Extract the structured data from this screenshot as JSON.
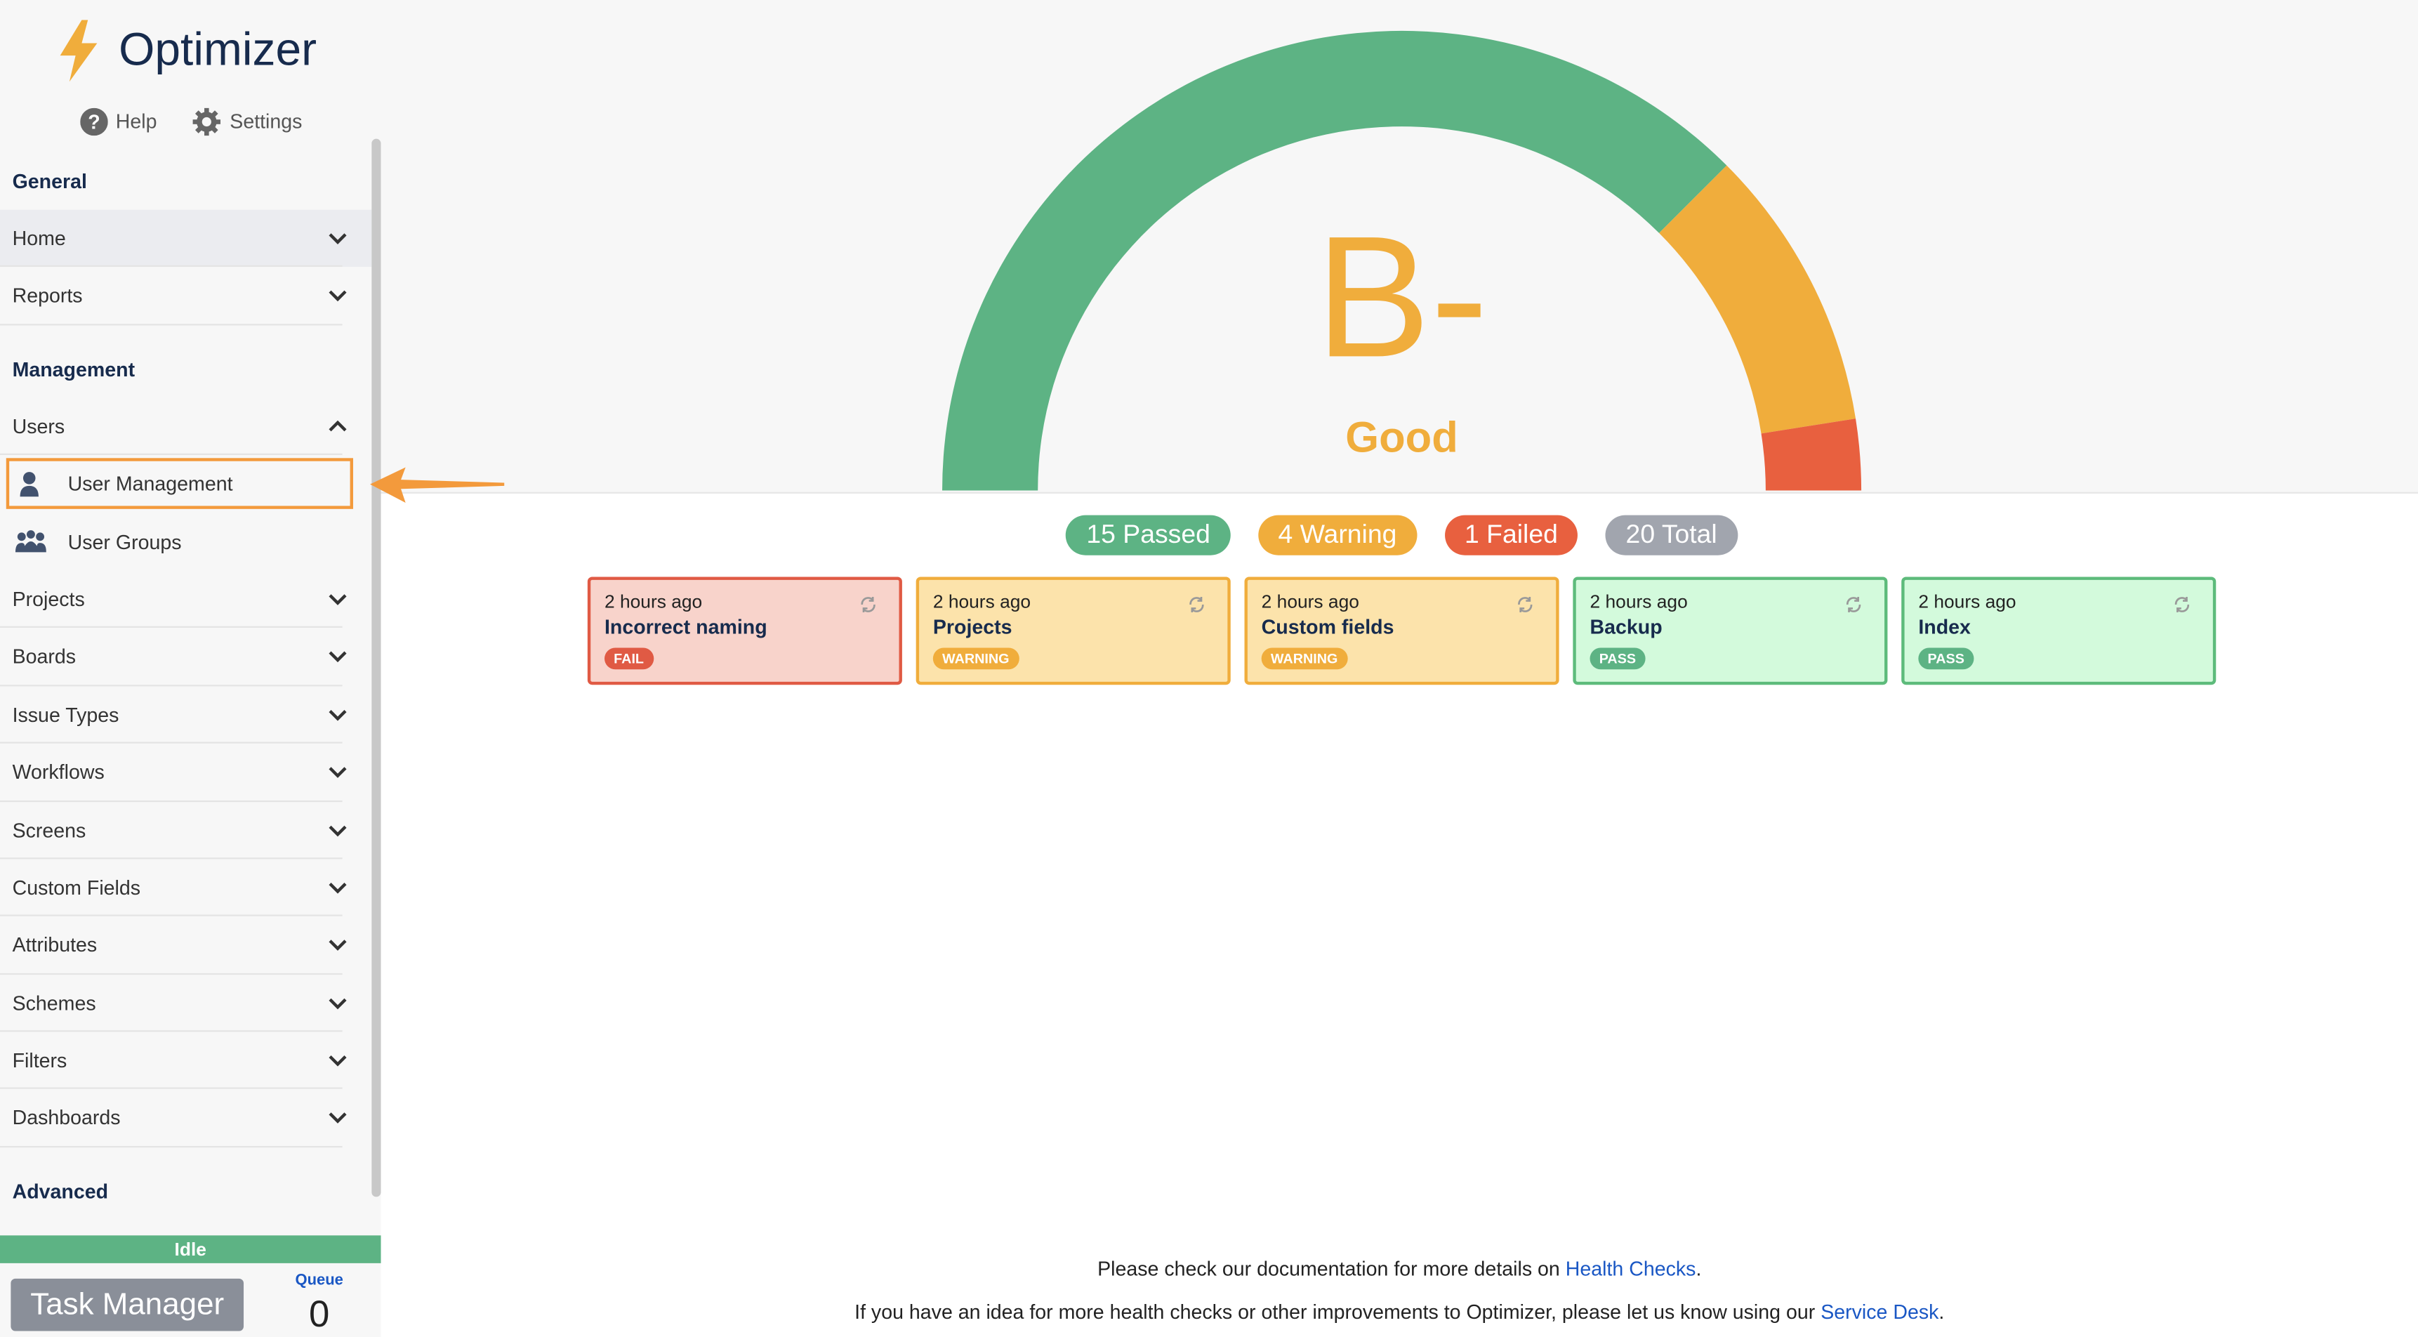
{
  "sidebar": {
    "brand": "Optimizer",
    "links": [
      "Help",
      "Settings"
    ],
    "sections": [
      {
        "title": "General",
        "items": [
          {
            "label": "Home",
            "expanded": false,
            "selected": true
          },
          {
            "label": "Reports",
            "expanded": false
          }
        ]
      },
      {
        "title": "Management",
        "items": [
          {
            "label": "Users",
            "expanded": true,
            "children": [
              "User Management",
              "User Groups"
            ]
          },
          {
            "label": "Projects",
            "expanded": false
          },
          {
            "label": "Boards",
            "expanded": false
          },
          {
            "label": "Issue Types",
            "expanded": false
          },
          {
            "label": "Workflows",
            "expanded": false
          },
          {
            "label": "Screens",
            "expanded": false
          },
          {
            "label": "Custom Fields",
            "expanded": false
          },
          {
            "label": "Attributes",
            "expanded": false
          },
          {
            "label": "Schemes",
            "expanded": false
          },
          {
            "label": "Filters",
            "expanded": false
          },
          {
            "label": "Dashboards",
            "expanded": false
          }
        ]
      },
      {
        "title": "Advanced",
        "items": []
      }
    ],
    "status": "Idle",
    "task_manager": "Task Manager",
    "queue_label": "Queue",
    "queue": 0
  },
  "gauge": {
    "grade": "B-",
    "rating": "Good",
    "summary": [
      {
        "count": 15,
        "label": "Passed",
        "color": "#5db384"
      },
      {
        "count": 4,
        "label": "Warning",
        "color": "#f0ad3c"
      },
      {
        "count": 1,
        "label": "Failed",
        "color": "#e8603f"
      }
    ],
    "total": {
      "count": 20,
      "label": "Total",
      "color": "#a1a5ae"
    }
  },
  "cards": [
    {
      "time": "2 hours ago",
      "title": "Incorrect naming",
      "status": "FAIL",
      "kind": "fail"
    },
    {
      "time": "2 hours ago",
      "title": "Projects",
      "status": "WARNING",
      "kind": "warning"
    },
    {
      "time": "2 hours ago",
      "title": "Custom fields",
      "status": "WARNING",
      "kind": "warning"
    },
    {
      "time": "2 hours ago",
      "title": "Backup",
      "status": "PASS",
      "kind": "pass"
    },
    {
      "time": "2 hours ago",
      "title": "Index",
      "status": "PASS",
      "kind": "pass"
    }
  ],
  "footer": [
    {
      "before": "Please check our documentation for more details on",
      "link": "Health Checks",
      "after": "."
    },
    {
      "before": "If you have an idea for more health checks or other improvements to Optimizer, please let us know using our",
      "link": "Service Desk",
      "after": "."
    }
  ]
}
